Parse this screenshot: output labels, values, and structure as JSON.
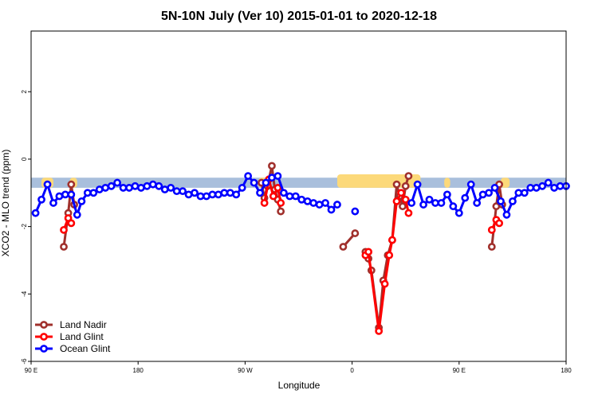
{
  "chart_data": {
    "type": "line",
    "title": "5N-10N July (Ver 10)   2015-01-01 to 2020-12-18",
    "xlabel": "Longitude",
    "ylabel": "XCO2 - MLO trend (ppm)",
    "xlim": [
      0,
      360
    ],
    "ylim": [
      -6,
      3.8
    ],
    "x_ticks": [
      {
        "value": 0,
        "label": "90 E"
      },
      {
        "value": 72,
        "label": "180"
      },
      {
        "value": 144,
        "label": "90 W"
      },
      {
        "value": 216,
        "label": "0"
      },
      {
        "value": 288,
        "label": "90 E"
      },
      {
        "value": 360,
        "label": "180"
      }
    ],
    "y_ticks": [
      {
        "value": 2,
        "label": "2"
      },
      {
        "value": 0,
        "label": "0"
      },
      {
        "value": -2,
        "label": "-2"
      },
      {
        "value": -4,
        "label": "-4"
      },
      {
        "value": -6,
        "label": "-6"
      }
    ],
    "band": {
      "y0": -0.85,
      "y1": -0.55,
      "color": "#a9bfdc"
    },
    "land_patches": [
      {
        "x0": 7,
        "x1": 15,
        "y_top": -0.55
      },
      {
        "x0": 26,
        "x1": 31,
        "y_top": -0.55
      },
      {
        "x0": 153,
        "x1": 161,
        "y_top": -0.55
      },
      {
        "x0": 206,
        "x1": 262,
        "y_top": -0.45
      },
      {
        "x0": 278,
        "x1": 282,
        "y_top": -0.55
      },
      {
        "x0": 316,
        "x1": 322,
        "y_top": -0.55
      }
    ],
    "land_color": "#fcd97a",
    "legend": {
      "position": "bottom-left"
    },
    "series": [
      {
        "name": "Land Nadir",
        "color": "#a0302c",
        "segments": [
          [
            [
              22,
              -2.6
            ],
            [
              25,
              -1.6
            ],
            [
              27,
              -0.75
            ],
            [
              29,
              -1.35
            ]
          ],
          [
            [
              155,
              -0.7
            ],
            [
              157,
              -1.15
            ],
            [
              159,
              -0.8
            ],
            [
              162,
              -0.2
            ],
            [
              164,
              -0.9
            ],
            [
              166,
              -1.2
            ],
            [
              168,
              -1.55
            ]
          ],
          [
            [
              210,
              -2.6
            ],
            [
              218,
              -2.2
            ]
          ],
          [
            [
              225,
              -2.75
            ],
            [
              227,
              -2.95
            ],
            [
              229,
              -3.3
            ],
            [
              234,
              -5.0
            ],
            [
              237,
              -3.6
            ],
            [
              240,
              -2.85
            ],
            [
              243,
              -2.4
            ],
            [
              246,
              -0.75
            ],
            [
              248,
              -1.1
            ],
            [
              250,
              -1.4
            ],
            [
              252,
              -0.8
            ],
            [
              254,
              -0.5
            ]
          ],
          [
            [
              310,
              -2.6
            ],
            [
              313,
              -1.4
            ],
            [
              315,
              -0.75
            ],
            [
              317,
              -1.35
            ]
          ]
        ]
      },
      {
        "name": "Land Glint",
        "color": "#ff0000",
        "segments": [
          [
            [
              22,
              -2.1
            ],
            [
              25,
              -1.75
            ],
            [
              27,
              -1.9
            ]
          ],
          [
            [
              157,
              -1.3
            ],
            [
              160,
              -0.6
            ],
            [
              163,
              -1.1
            ],
            [
              166,
              -0.85
            ],
            [
              168,
              -1.3
            ]
          ],
          [
            [
              225,
              -2.85
            ],
            [
              227,
              -2.75
            ],
            [
              234,
              -5.1
            ],
            [
              238,
              -3.7
            ],
            [
              241,
              -2.85
            ],
            [
              243,
              -2.4
            ],
            [
              246,
              -1.25
            ],
            [
              249,
              -1.0
            ],
            [
              252,
              -1.2
            ],
            [
              254,
              -1.6
            ]
          ],
          [
            [
              310,
              -2.1
            ],
            [
              313,
              -1.8
            ],
            [
              315,
              -1.9
            ]
          ]
        ]
      },
      {
        "name": "Ocean Glint",
        "color": "#0000ff",
        "segments": [
          [
            [
              3,
              -1.6
            ],
            [
              7,
              -1.2
            ],
            [
              11,
              -0.75
            ],
            [
              15,
              -1.3
            ],
            [
              19,
              -1.1
            ],
            [
              23,
              -1.05
            ],
            [
              27,
              -1.05
            ],
            [
              31,
              -1.65
            ],
            [
              34,
              -1.25
            ],
            [
              38,
              -1.0
            ],
            [
              42,
              -1.0
            ],
            [
              46,
              -0.9
            ],
            [
              50,
              -0.85
            ],
            [
              54,
              -0.8
            ],
            [
              58,
              -0.7
            ],
            [
              62,
              -0.85
            ],
            [
              66,
              -0.85
            ],
            [
              70,
              -0.8
            ],
            [
              74,
              -0.85
            ],
            [
              78,
              -0.8
            ],
            [
              82,
              -0.75
            ],
            [
              86,
              -0.8
            ],
            [
              90,
              -0.9
            ],
            [
              94,
              -0.85
            ],
            [
              98,
              -0.95
            ],
            [
              102,
              -0.95
            ],
            [
              106,
              -1.05
            ],
            [
              110,
              -1.0
            ],
            [
              114,
              -1.1
            ],
            [
              118,
              -1.1
            ],
            [
              122,
              -1.05
            ],
            [
              126,
              -1.05
            ],
            [
              130,
              -1.0
            ],
            [
              134,
              -1.0
            ],
            [
              138,
              -1.05
            ],
            [
              142,
              -0.85
            ],
            [
              146,
              -0.5
            ],
            [
              150,
              -0.7
            ],
            [
              154,
              -1.0
            ],
            [
              158,
              -0.7
            ],
            [
              162,
              -0.55
            ],
            [
              166,
              -0.5
            ],
            [
              170,
              -1.0
            ],
            [
              174,
              -1.1
            ],
            [
              178,
              -1.1
            ],
            [
              182,
              -1.2
            ],
            [
              186,
              -1.25
            ],
            [
              190,
              -1.3
            ],
            [
              194,
              -1.35
            ],
            [
              198,
              -1.3
            ],
            [
              202,
              -1.5
            ],
            [
              206,
              -1.35
            ]
          ],
          [
            [
              218,
              -1.55
            ]
          ],
          [
            [
              256,
              -1.3
            ],
            [
              260,
              -0.75
            ],
            [
              264,
              -1.35
            ],
            [
              268,
              -1.2
            ],
            [
              272,
              -1.3
            ],
            [
              276,
              -1.3
            ],
            [
              280,
              -1.05
            ],
            [
              284,
              -1.4
            ],
            [
              288,
              -1.6
            ],
            [
              292,
              -1.15
            ],
            [
              296,
              -0.75
            ],
            [
              300,
              -1.3
            ],
            [
              304,
              -1.05
            ],
            [
              308,
              -1.0
            ],
            [
              312,
              -0.85
            ],
            [
              316,
              -1.25
            ],
            [
              320,
              -1.65
            ],
            [
              324,
              -1.25
            ],
            [
              328,
              -1.0
            ],
            [
              332,
              -1.0
            ],
            [
              336,
              -0.85
            ],
            [
              340,
              -0.85
            ],
            [
              344,
              -0.8
            ],
            [
              348,
              -0.7
            ],
            [
              352,
              -0.85
            ],
            [
              356,
              -0.8
            ],
            [
              360,
              -0.8
            ]
          ]
        ]
      }
    ]
  }
}
